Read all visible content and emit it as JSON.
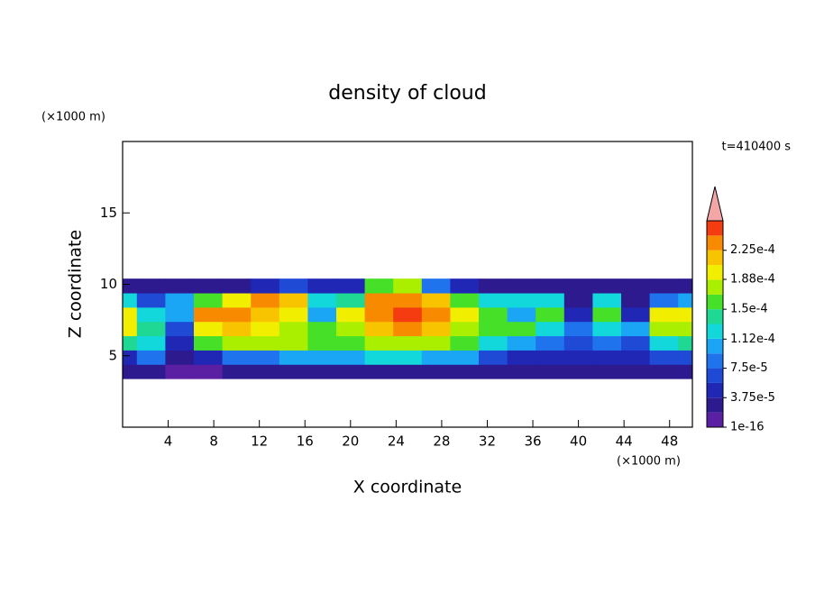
{
  "chart_data": {
    "type": "contour",
    "title": "density of cloud",
    "xlabel": "X coordinate",
    "ylabel": "Z coordinate",
    "x_unit": "(×1000 m)",
    "y_unit": "(×1000 m)",
    "time_label": "t=410400 s",
    "xlim": [
      0,
      50
    ],
    "ylim": [
      0,
      20
    ],
    "xticks": [
      4,
      8,
      12,
      16,
      20,
      24,
      28,
      32,
      36,
      40,
      44,
      48
    ],
    "yticks": [
      5,
      10,
      15
    ],
    "field": {
      "x": [
        0,
        2.5,
        5,
        7.5,
        10,
        12.5,
        15,
        17.5,
        20,
        22.5,
        25,
        27.5,
        30,
        32.5,
        35,
        37.5,
        40,
        42.5,
        45,
        47.5,
        50
      ],
      "z": [
        3.9,
        4.9,
        5.9,
        6.9,
        7.9,
        8.9,
        9.9
      ],
      "values": [
        [
          2e-05,
          3e-05,
          1e-05,
          1e-05,
          2e-05,
          3e-05,
          3e-05,
          3e-05,
          3e-05,
          3e-05,
          3e-05,
          3e-05,
          3e-05,
          2e-05,
          2e-05,
          2e-05,
          2e-05,
          2e-05,
          2e-05,
          2e-05,
          2e-05
        ],
        [
          5e-05,
          8e-05,
          3e-05,
          4e-05,
          8e-05,
          9e-05,
          0.0001,
          0.00011,
          0.00011,
          0.00012,
          0.00012,
          0.00011,
          0.0001,
          7e-05,
          5e-05,
          4e-05,
          4e-05,
          5e-05,
          4e-05,
          6e-05,
          7e-05
        ],
        [
          0.00014,
          0.00013,
          5e-05,
          0.00016,
          0.00017,
          0.00017,
          0.00017,
          0.00016,
          0.00016,
          0.00018,
          0.00018,
          0.00017,
          0.00015,
          0.00013,
          0.00011,
          8e-05,
          6e-05,
          9e-05,
          6e-05,
          0.00013,
          0.00014
        ],
        [
          0.00019,
          0.00014,
          6e-05,
          0.0002,
          0.00021,
          0.0002,
          0.00018,
          0.00015,
          0.00018,
          0.00022,
          0.00023,
          0.00021,
          0.00018,
          0.00015,
          0.00016,
          0.00013,
          9e-05,
          0.00013,
          0.0001,
          0.00017,
          0.00018
        ],
        [
          0.00019,
          0.00012,
          0.0001,
          0.00023,
          0.00024,
          0.00022,
          0.00019,
          0.00011,
          0.00019,
          0.00024,
          0.00025,
          0.00023,
          0.00019,
          0.00016,
          0.0001,
          0.00016,
          5e-05,
          0.00015,
          5e-05,
          0.00019,
          0.00019
        ],
        [
          0.00012,
          6e-05,
          0.00011,
          0.00015,
          0.0002,
          0.00023,
          0.00021,
          0.00012,
          0.00014,
          0.00023,
          0.00024,
          0.00021,
          0.00016,
          0.00013,
          0.00013,
          0.00012,
          3e-05,
          0.00012,
          3e-05,
          9e-05,
          0.0001
        ],
        [
          2e-05,
          2e-05,
          2e-05,
          2e-05,
          3e-05,
          5e-05,
          6e-05,
          4e-05,
          5e-05,
          0.00015,
          0.00018,
          9e-05,
          4e-05,
          3e-05,
          3e-05,
          3e-05,
          2e-05,
          3e-05,
          2e-05,
          3e-05,
          3e-05
        ]
      ]
    },
    "levels": [
      1e-16,
      1.875e-05,
      3.75e-05,
      5.625e-05,
      7.5e-05,
      9.375e-05,
      0.0001125,
      0.00013125,
      0.00015,
      0.00016875,
      0.0001875,
      0.00020625,
      0.000225,
      0.00024375,
      0.0002625
    ],
    "colors": [
      "#5b1fa3",
      "#2c1a8e",
      "#1f27b4",
      "#1e4ad6",
      "#1f74ee",
      "#1aa6f4",
      "#12d8dc",
      "#1ed894",
      "#46e028",
      "#aaee00",
      "#f2ee00",
      "#f8c400",
      "#f88a00",
      "#f43c10"
    ],
    "over_color": "#f4a6a6",
    "colorbar_ticks": [
      {
        "value": 1e-16,
        "label": "1e-16"
      },
      {
        "value": 3.75e-05,
        "label": "3.75e-5"
      },
      {
        "value": 7.5e-05,
        "label": "7.5e-5"
      },
      {
        "value": 0.000112,
        "label": "1.12e-4"
      },
      {
        "value": 0.00015,
        "label": "1.5e-4"
      },
      {
        "value": 0.000188,
        "label": "1.88e-4"
      },
      {
        "value": 0.000225,
        "label": "2.25e-4"
      }
    ]
  }
}
